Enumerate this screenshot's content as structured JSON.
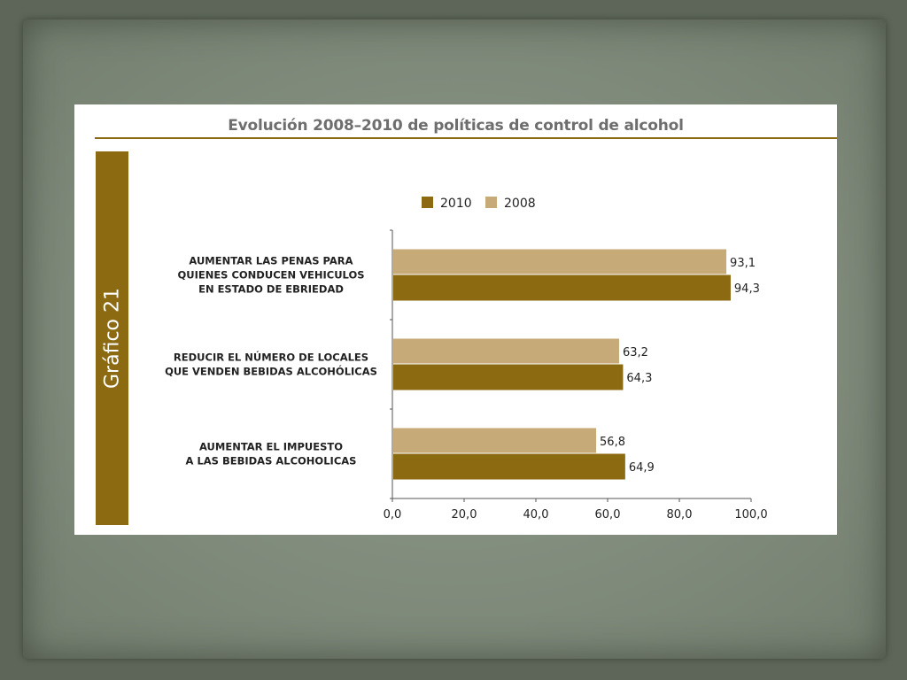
{
  "figure": {
    "title": "Evolución 2008–2010 de políticas de control de alcohol",
    "side_label": "Gráfico 21"
  },
  "colors": {
    "series_2010": "#8c6a12",
    "series_2008": "#c6aa77",
    "axis": "#555555",
    "text": "#222222"
  },
  "chart_data": {
    "type": "bar",
    "orientation": "horizontal",
    "categories": [
      [
        "AUMENTAR LAS PENAS PARA",
        "QUIENES CONDUCEN VEHICULOS",
        "EN ESTADO DE EBRIEDAD"
      ],
      [
        "REDUCIR EL NÚMERO DE LOCALES",
        "QUE VENDEN BEBIDAS ALCOHÓLICAS"
      ],
      [
        "AUMENTAR EL IMPUESTO",
        "A LAS BEBIDAS ALCOHOLICAS"
      ]
    ],
    "series": [
      {
        "name": "2008",
        "values": [
          93.1,
          63.2,
          56.8
        ],
        "labels": [
          "93,1",
          "63,2",
          "56,8"
        ]
      },
      {
        "name": "2010",
        "values": [
          94.3,
          64.3,
          64.9
        ],
        "labels": [
          "94,3",
          "64,3",
          "64,9"
        ]
      }
    ],
    "legend": {
      "placement": "top",
      "order": [
        "2010",
        "2008"
      ]
    },
    "xlim": [
      0,
      100
    ],
    "xticks": [
      0,
      20,
      40,
      60,
      80,
      100
    ],
    "xtick_labels": [
      "0,0",
      "20,0",
      "40,0",
      "60,0",
      "80,0",
      "100,0"
    ],
    "grid": false
  }
}
